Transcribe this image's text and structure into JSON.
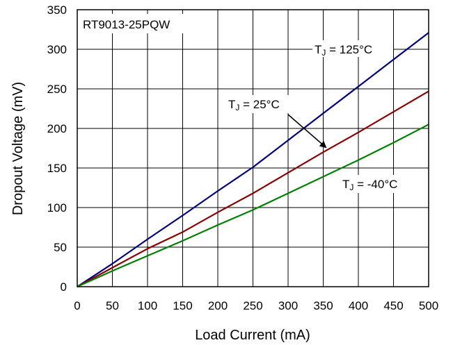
{
  "chart_data": {
    "type": "line",
    "title": "RT9013-25PQW",
    "xlabel": "Load Current (mA)",
    "ylabel": "Dropout Voltage (mV)",
    "xlim": [
      0,
      500
    ],
    "ylim": [
      0,
      350
    ],
    "xticks": [
      0,
      50,
      100,
      150,
      200,
      250,
      300,
      350,
      400,
      450,
      500
    ],
    "yticks": [
      0,
      50,
      100,
      150,
      200,
      250,
      300,
      350
    ],
    "grid": true,
    "series": [
      {
        "name": "TJ = 125°C",
        "label_main": "T",
        "label_sub": "J",
        "label_rest": " = 125°C",
        "color": "#000080",
        "x": [
          0,
          50,
          100,
          150,
          200,
          250,
          300,
          350,
          400,
          450,
          500
        ],
        "y": [
          0,
          29,
          60,
          90,
          121,
          151,
          185,
          219,
          253,
          287,
          321
        ]
      },
      {
        "name": "TJ = 25°C",
        "label_main": "T",
        "label_sub": "J",
        "label_rest": " = 25°C",
        "color": "#8b0000",
        "x": [
          0,
          50,
          100,
          150,
          200,
          250,
          300,
          350,
          400,
          450,
          500
        ],
        "y": [
          0,
          24,
          48,
          69,
          94,
          118,
          144,
          170,
          195,
          221,
          247
        ]
      },
      {
        "name": "TJ = -40°C",
        "label_main": "T",
        "label_sub": "J",
        "label_rest": " = -40°C",
        "color": "#008000",
        "x": [
          0,
          50,
          100,
          150,
          200,
          250,
          300,
          350,
          400,
          450,
          500
        ],
        "y": [
          0,
          20,
          39,
          58,
          78,
          97,
          118,
          139,
          160,
          182,
          205
        ]
      }
    ]
  }
}
